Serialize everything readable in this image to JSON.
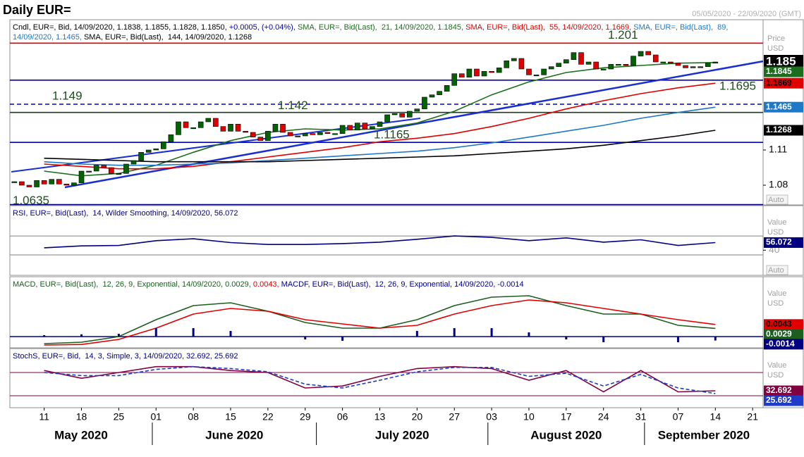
{
  "title": "Daily EUR=",
  "date_range": "05/05/2020 - 22/09/2020 (GMT)",
  "chart_data": [
    {
      "type": "candlestick",
      "legend": [
        [
          {
            "text": "Cndl, EUR=, Bid, 14/09/2020, 1.1838, 1.1855, 1.1828, 1.1850, ",
            "color": "#000000"
          },
          {
            "text": "+0.0005, (+0.04%), ",
            "color": "#0000c0"
          },
          {
            "text": "SMA, EUR=, Bid(Last),  21, 14/09/2020, 1.1845, ",
            "color": "#1b6e1b"
          },
          {
            "text": "SMA, EUR=, Bid(Last),  55, 14/09/2020, 1.1669, ",
            "color": "#e00000"
          },
          {
            "text": "SMA, EUR=, Bid(Last),  89,",
            "color": "#1e78c8"
          }
        ],
        [
          {
            "text": "14/09/2020, 1.1465, ",
            "color": "#1e78c8"
          },
          {
            "text": "SMA, EUR=, Bid(Last),  144, 14/09/2020, 1.1268",
            "color": "#000000"
          }
        ]
      ],
      "categories": [
        null,
        null,
        null,
        null,
        "11",
        null,
        null,
        null,
        null,
        "18",
        null,
        null,
        null,
        null,
        "25",
        null,
        null,
        null,
        null,
        "01",
        null,
        null,
        null,
        null,
        "08",
        null,
        null,
        null,
        null,
        "15",
        null,
        null,
        null,
        null,
        "22",
        null,
        null,
        null,
        null,
        "29",
        null,
        null,
        null,
        null,
        "06",
        null,
        null,
        null,
        null,
        "13",
        null,
        null,
        null,
        null,
        "20",
        null,
        null,
        null,
        null,
        "27",
        null,
        null,
        null,
        null,
        "03",
        null,
        null,
        null,
        null,
        "10",
        null,
        null,
        null,
        null,
        "17",
        null,
        null,
        null,
        null,
        "24",
        null,
        null,
        null,
        null,
        "31",
        null,
        null,
        null,
        null,
        "07",
        null,
        null,
        null,
        null,
        "14",
        null,
        null,
        null,
        null,
        "21"
      ],
      "x_groups": [
        "May 2020",
        "June 2020",
        "July 2020",
        "August 2020",
        "September 2020"
      ],
      "values": [
        1.083,
        1.08,
        1.0785,
        1.084,
        1.081,
        1.085,
        1.081,
        1.08,
        1.082,
        1.092,
        1.092,
        1.097,
        1.095,
        1.09,
        1.09,
        1.098,
        1.101,
        1.108,
        1.11,
        1.111,
        1.117,
        1.123,
        1.134,
        1.129,
        1.129,
        1.134,
        1.137,
        1.13,
        1.126,
        1.132,
        1.126,
        1.125,
        1.121,
        1.118,
        1.126,
        1.132,
        1.125,
        1.122,
        1.122,
        1.124,
        1.123,
        1.125,
        1.124,
        1.124,
        1.131,
        1.127,
        1.133,
        1.128,
        1.13,
        1.134,
        1.14,
        1.141,
        1.138,
        1.143,
        1.145,
        1.155,
        1.157,
        1.16,
        1.165,
        1.175,
        1.172,
        1.179,
        1.173,
        1.177,
        1.176,
        1.18,
        1.186,
        1.188,
        1.179,
        1.174,
        1.174,
        1.179,
        1.181,
        1.184,
        1.187,
        1.193,
        1.183,
        1.185,
        1.179,
        1.179,
        1.183,
        1.183,
        1.182,
        1.19,
        1.194,
        1.191,
        1.185,
        1.185,
        1.184,
        1.182,
        1.18,
        1.181,
        1.181,
        1.184,
        1.185,
        null,
        null,
        null,
        null,
        null
      ],
      "up_color": "#006400",
      "down_color": "#e00000",
      "current_color": "#000000",
      "x": [
        "11",
        "18",
        "25",
        "01",
        "08",
        "15",
        "22",
        "29",
        "06",
        "13",
        "20",
        "27",
        "03",
        "10",
        "17",
        "24",
        "31",
        "07",
        "14"
      ],
      "series": [
        {
          "color": "#1b6e1b",
          "box_text": "#ffffff",
          "values": [
            1.092,
            1.088,
            1.09,
            1.097,
            1.108,
            1.118,
            1.125,
            1.128,
            1.127,
            1.128,
            1.133,
            1.143,
            1.157,
            1.168,
            1.176,
            1.18,
            1.182,
            1.184,
            1.1845
          ]
        },
        {
          "color": "#e00000",
          "box_text": "#000000",
          "values": [
            1.098,
            1.096,
            1.094,
            1.094,
            1.096,
            1.1,
            1.104,
            1.108,
            1.112,
            1.117,
            1.12,
            1.124,
            1.13,
            1.137,
            1.145,
            1.152,
            1.158,
            1.163,
            1.1669
          ]
        },
        {
          "color": "#1e78c8",
          "box_text": "#ffffff",
          "values": [
            1.1,
            1.098,
            1.097,
            1.097,
            1.098,
            1.099,
            1.101,
            1.103,
            1.105,
            1.107,
            1.109,
            1.112,
            1.116,
            1.121,
            1.126,
            1.131,
            1.137,
            1.142,
            1.1465
          ]
        },
        {
          "color": "#000000",
          "box_text": "#ffffff",
          "values": [
            1.103,
            1.102,
            1.101,
            1.1,
            1.1,
            1.1,
            1.1,
            1.101,
            1.102,
            1.103,
            1.104,
            1.105,
            1.107,
            1.109,
            1.111,
            1.114,
            1.118,
            1.122,
            1.1268
          ]
        }
      ],
      "levels": [
        {
          "value": 1.201,
          "color": "#e00000",
          "dashed": false
        },
        {
          "value": 1.1695,
          "color": "#0000c0",
          "dashed": false
        },
        {
          "value": 1.149,
          "color": "#0000c0",
          "dashed": true
        },
        {
          "value": 1.142,
          "color": "#1e3d1e",
          "dashed": false
        },
        {
          "value": 1.1165,
          "color": "#0000c0",
          "dashed": false
        },
        {
          "value": 1.0635,
          "color": "#000080",
          "dashed": false
        }
      ],
      "label_color": "#1e4d1e",
      "ylim": [
        1.0638,
        1.2198
      ],
      "yticks": [
        1.11,
        1.08
      ],
      "axis_labels": [
        "Price",
        "USD"
      ],
      "auto": "Auto"
    },
    {
      "type": "line",
      "legend": [
        [
          {
            "text": "RSI, EUR=, Bid(Last),  14, Wilder Smoothing, 14/09/2020, 56.072",
            "color": "#000080"
          }
        ]
      ],
      "x": [
        "11",
        "18",
        "25",
        "01",
        "08",
        "15",
        "22",
        "29",
        "06",
        "13",
        "20",
        "27",
        "03",
        "10",
        "17",
        "24",
        "31",
        "07",
        "14"
      ],
      "series": [
        {
          "color": "#000080",
          "box_text": "#ffffff",
          "dashed": false,
          "values": [
            45,
            49,
            50,
            60,
            64,
            56,
            52,
            52,
            54,
            57,
            63,
            70,
            67,
            60,
            66,
            57,
            62,
            50,
            56.072
          ]
        }
      ],
      "levels": [
        {
          "value": 70,
          "color": "#808080",
          "dashed": false
        },
        {
          "value": 30,
          "color": "#808080",
          "dashed": false
        }
      ],
      "ylim": [
        -11.5,
        131
      ],
      "yticks": [
        40
      ],
      "axis_labels": [
        "Value",
        "USD"
      ],
      "auto": "Auto"
    },
    {
      "type": "macd",
      "legend": [
        [
          {
            "text": "MACD, EUR=, Bid(Last),  12, 26, 9, Exponential, 14/09/2020, 0.0029, ",
            "color": "#1b5e20"
          },
          {
            "text": "0.0043, ",
            "color": "#e00000"
          },
          {
            "text": "MACDF, EUR=, Bid(Last),  12, 26, 9, Exponential, 14/09/2020, -0.0014",
            "color": "#000080"
          }
        ]
      ],
      "x": [
        "11",
        "18",
        "25",
        "01",
        "08",
        "15",
        "22",
        "29",
        "06",
        "13",
        "20",
        "27",
        "03",
        "10",
        "17",
        "24",
        "31",
        "07",
        "14"
      ],
      "series": [
        {
          "color": "#1b5e20",
          "box_text": "#ffffff",
          "dashed": false,
          "values": [
            -0.0025,
            -0.002,
            0.0,
            0.006,
            0.011,
            0.012,
            0.009,
            0.005,
            0.003,
            0.003,
            0.006,
            0.011,
            0.014,
            0.0145,
            0.011,
            0.008,
            0.008,
            0.004,
            0.0029
          ]
        },
        {
          "color": "#e00000",
          "box_text": "#000000",
          "dashed": false,
          "values": [
            -0.003,
            -0.0028,
            -0.001,
            0.003,
            0.008,
            0.01,
            0.009,
            0.006,
            0.0045,
            0.003,
            0.004,
            0.008,
            0.011,
            0.013,
            0.012,
            0.01,
            0.008,
            0.006,
            0.0043
          ]
        },
        {
          "color": "#000080",
          "box_text": "#ffffff",
          "bars": true,
          "values": [
            0.0005,
            0.0008,
            0.001,
            0.003,
            0.003,
            0.002,
            0.0,
            -0.001,
            -0.0015,
            0.0,
            0.002,
            0.003,
            0.003,
            0.0015,
            -0.001,
            -0.002,
            0.0,
            -0.002,
            -0.0014
          ]
        }
      ],
      "ylim": [
        -0.00375,
        0.02075
      ],
      "axis_labels": [
        "Value",
        "USD"
      ]
    },
    {
      "type": "line",
      "legend": [
        [
          {
            "text": "StochS, EUR=, Bid,  14, 3, Simple, 3, 14/09/2020, 32.692, 25.692",
            "color": "#000080"
          }
        ]
      ],
      "x": [
        "11",
        "18",
        "25",
        "01",
        "08",
        "15",
        "22",
        "29",
        "06",
        "13",
        "20",
        "27",
        "03",
        "10",
        "17",
        "24",
        "31",
        "07",
        "14"
      ],
      "series": [
        {
          "color": "#800040",
          "box_text": "#ffffff",
          "dashed": false,
          "values": [
            85,
            65,
            80,
            95,
            95,
            85,
            80,
            40,
            45,
            70,
            90,
            95,
            90,
            60,
            85,
            30,
            85,
            30,
            32.692
          ]
        },
        {
          "color": "#1e3cc8",
          "box_text": "#ffffff",
          "dashed": true,
          "values": [
            80,
            72,
            72,
            88,
            95,
            90,
            82,
            50,
            40,
            60,
            82,
            93,
            93,
            70,
            78,
            45,
            75,
            40,
            25.692
          ]
        }
      ],
      "levels": [
        {
          "value": 80,
          "color": "#800040",
          "dashed": false
        },
        {
          "value": 20,
          "color": "#800040",
          "dashed": false
        }
      ],
      "ylim": [
        -9,
        138
      ],
      "axis_labels": [
        "Value",
        "USD"
      ]
    }
  ]
}
